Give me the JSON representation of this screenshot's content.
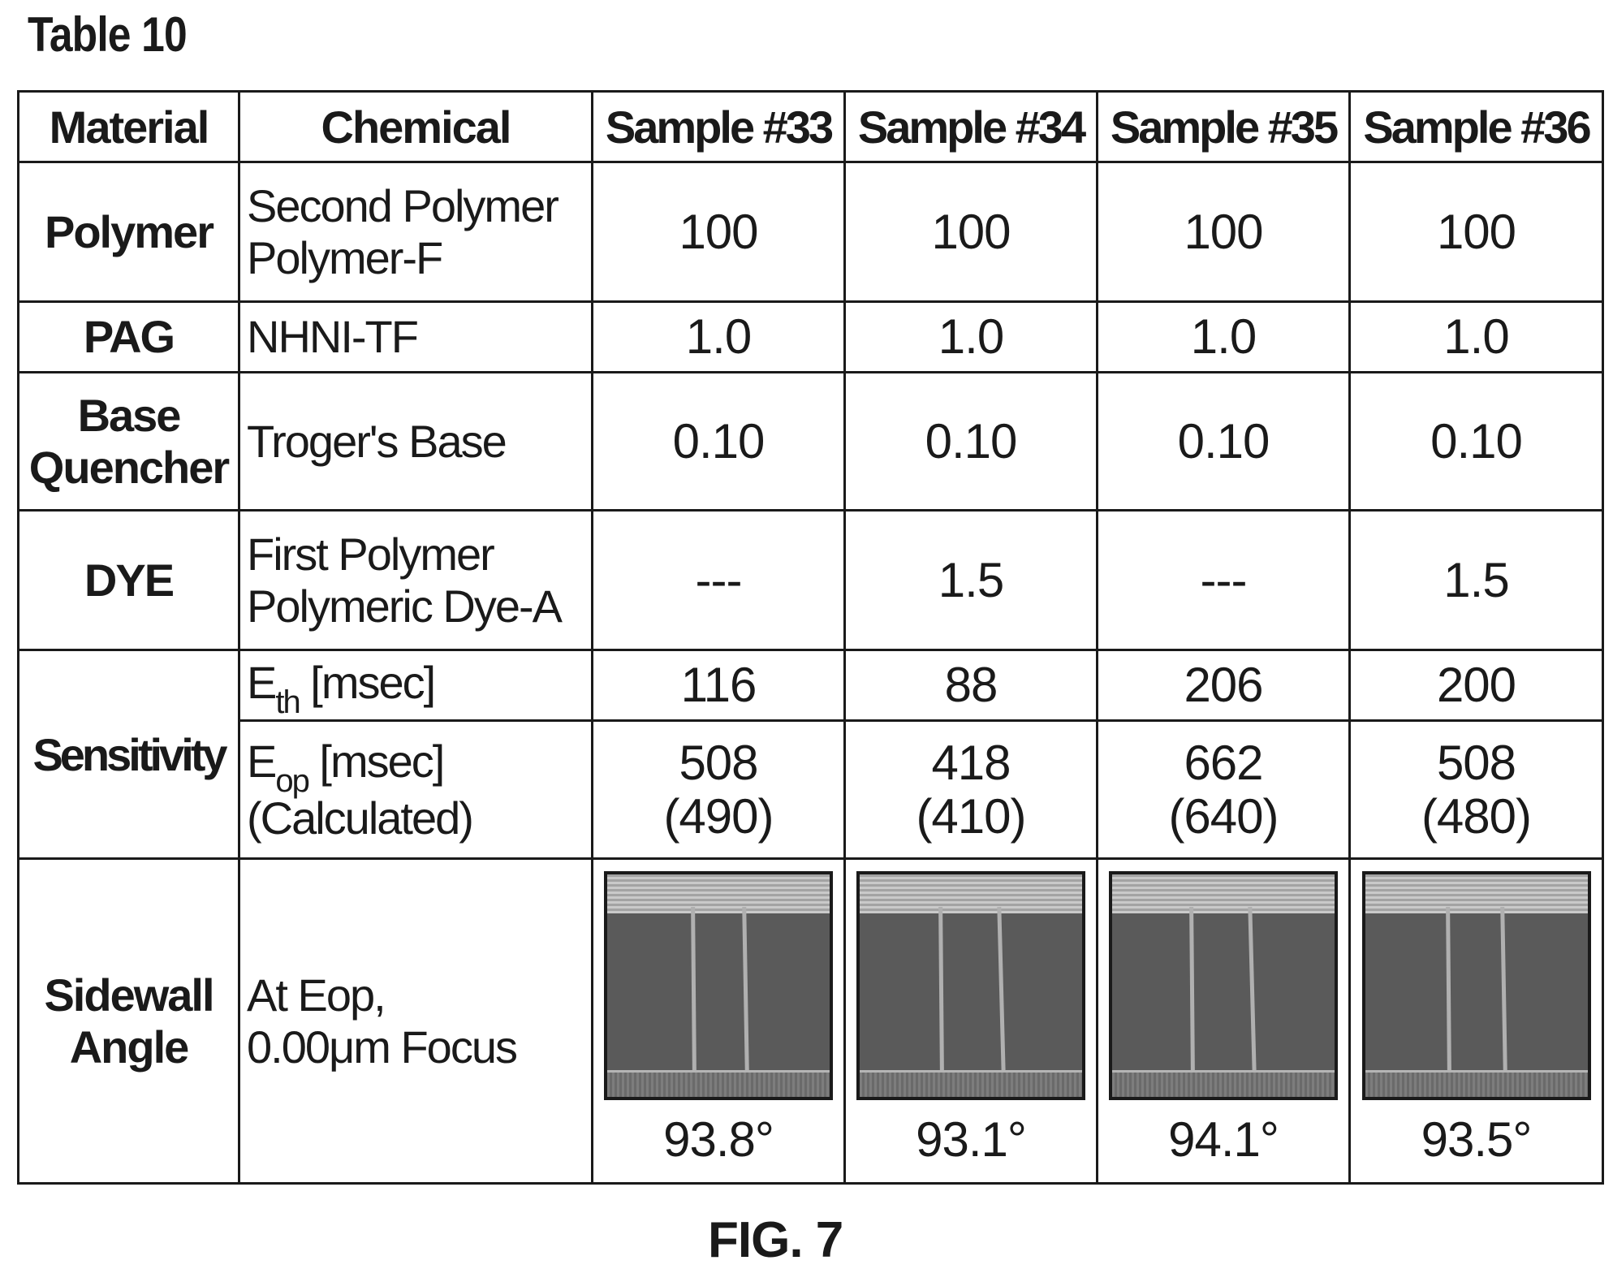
{
  "title": "Table 10",
  "columns": {
    "material": "Material",
    "chemical": "Chemical",
    "samples": [
      "Sample #33",
      "Sample #34",
      "Sample #35",
      "Sample #36"
    ]
  },
  "rows": {
    "polymer": {
      "material": "Polymer",
      "chemical_line1": "Second Polymer",
      "chemical_line2": "Polymer-F",
      "values": [
        "100",
        "100",
        "100",
        "100"
      ]
    },
    "pag": {
      "material": "PAG",
      "chemical": "NHNI-TF",
      "values": [
        "1.0",
        "1.0",
        "1.0",
        "1.0"
      ]
    },
    "base_quencher": {
      "material_line1": "Base",
      "material_line2": "Quencher",
      "chemical": "Troger's Base",
      "values": [
        "0.10",
        "0.10",
        "0.10",
        "0.10"
      ]
    },
    "dye": {
      "material": "DYE",
      "chemical_line1": "First Polymer",
      "chemical_line2": "Polymeric Dye-A",
      "values": [
        "---",
        "1.5",
        "---",
        "1.5"
      ]
    },
    "sensitivity": {
      "material": "Sensitivity",
      "eth": {
        "symbol": "E",
        "subscript": "th",
        "unit": " [msec]",
        "values": [
          "116",
          "88",
          "206",
          "200"
        ]
      },
      "eop": {
        "symbol": "E",
        "subscript": "op",
        "unit": " [msec]",
        "note": "(Calculated)",
        "values": [
          "508",
          "418",
          "662",
          "508"
        ],
        "calculated": [
          "(490)",
          "(410)",
          "(640)",
          "(480)"
        ]
      }
    },
    "sidewall_angle": {
      "material_line1": "Sidewall",
      "material_line2": "Angle",
      "chemical_line1": "At Eop,",
      "chemical_line2": "0.00μm Focus",
      "angles": [
        "93.8°",
        "93.1°",
        "94.1°",
        "93.5°"
      ]
    }
  },
  "caption": "FIG. 7"
}
